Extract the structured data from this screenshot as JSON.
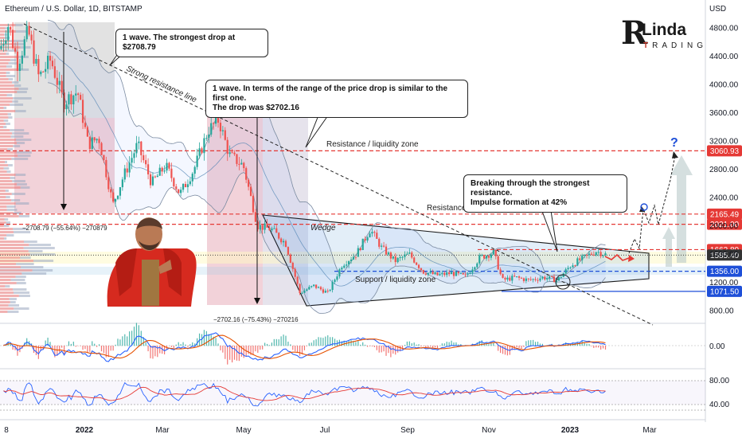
{
  "title": "Ethereum / U.S. Dollar, 1D, BITSTAMP",
  "currency_label": "USD",
  "logo": {
    "initial": "R",
    "word": "Linda",
    "sub_accent": "T",
    "sub_rest": "RADING"
  },
  "callouts": {
    "first_wave": "1 wave. The strongest drop at $2708.79",
    "second_wave_line1": "1 wave. In terms of the range of the price drop is similar to the first one.",
    "second_wave_line2": "The drop was $2702.16",
    "breakout_line1": "Breaking through the strongest resistance.",
    "breakout_line2": "Impulse formation at 42%"
  },
  "annotations": {
    "strong_resistance": "Strong resistance line",
    "resistance_zone_1": "Resistance / liquidity zone",
    "resistance_zone_2": "Resistance / liquidity zone",
    "support_zone": "Support / liquidity zone",
    "wedge": "Wedge",
    "measure_1": "−2708.79 (−55.64%) −270879",
    "measure_2": "−2702.16 (−75.43%) −270216",
    "question": "?"
  },
  "colors": {
    "up": "#26a69a",
    "down": "#ef5350",
    "resistance": "#e53935",
    "support": "#1e4fd8",
    "accent_red": "#c0392b"
  },
  "chart_data": {
    "type": "candlestick",
    "symbol": "ETHUSD",
    "timeframe": "1D",
    "exchange": "BITSTAMP",
    "ylim": [
      600,
      5000
    ],
    "y_ticks": [
      800,
      1200,
      1600,
      2000,
      2400,
      2800,
      3200,
      3600,
      4000,
      4400,
      4800
    ],
    "y_tick_labels": [
      "800.00",
      "1200.00",
      "1600.00",
      "2000.00",
      "2400.00",
      "2800.00",
      "3200.00",
      "3600.00",
      "4000.00",
      "4400.00",
      "4800.00"
    ],
    "x_tick_labels": [
      "8",
      "2022",
      "Mar",
      "May",
      "Jul",
      "Sep",
      "Nov",
      "2023",
      "Mar"
    ],
    "price_levels": [
      {
        "label": "3060.93",
        "value": 3060.93,
        "color": "#e53935",
        "style": "dashed"
      },
      {
        "label": "2165.49",
        "value": 2165.49,
        "color": "#e53935",
        "style": "dashed"
      },
      {
        "label": "2021.00",
        "value": 2021.0,
        "color": "#e53935",
        "style": "dashed"
      },
      {
        "label": "1662.80",
        "value": 1662.8,
        "color": "#e53935",
        "style": "dashed"
      },
      {
        "label": "1585.40",
        "value": 1585.4,
        "color": "#333333",
        "style": "dotted"
      },
      {
        "label": "1356.00",
        "value": 1356.0,
        "color": "#1e4fd8",
        "style": "dashed"
      },
      {
        "label": "1071.50",
        "value": 1071.5,
        "color": "#1e4fd8",
        "style": "solid"
      }
    ],
    "price_path": [
      {
        "t": 0.0,
        "v": 4500
      },
      {
        "t": 0.012,
        "v": 4850
      },
      {
        "t": 0.025,
        "v": 4300
      },
      {
        "t": 0.04,
        "v": 4750
      },
      {
        "t": 0.055,
        "v": 4100
      },
      {
        "t": 0.072,
        "v": 4350
      },
      {
        "t": 0.09,
        "v": 3750
      },
      {
        "t": 0.11,
        "v": 3900
      },
      {
        "t": 0.125,
        "v": 3150
      },
      {
        "t": 0.14,
        "v": 3250
      },
      {
        "t": 0.16,
        "v": 2300
      },
      {
        "t": 0.175,
        "v": 2700
      },
      {
        "t": 0.195,
        "v": 3150
      },
      {
        "t": 0.215,
        "v": 2600
      },
      {
        "t": 0.235,
        "v": 2850
      },
      {
        "t": 0.255,
        "v": 2450
      },
      {
        "t": 0.275,
        "v": 2800
      },
      {
        "t": 0.295,
        "v": 3350
      },
      {
        "t": 0.31,
        "v": 3500
      },
      {
        "t": 0.325,
        "v": 3000
      },
      {
        "t": 0.345,
        "v": 2850
      },
      {
        "t": 0.365,
        "v": 2000
      },
      {
        "t": 0.385,
        "v": 1950
      },
      {
        "t": 0.405,
        "v": 1750
      },
      {
        "t": 0.425,
        "v": 1050
      },
      {
        "t": 0.445,
        "v": 1150
      },
      {
        "t": 0.465,
        "v": 1050
      },
      {
        "t": 0.485,
        "v": 1450
      },
      {
        "t": 0.505,
        "v": 1600
      },
      {
        "t": 0.525,
        "v": 1950
      },
      {
        "t": 0.54,
        "v": 1700
      },
      {
        "t": 0.56,
        "v": 1500
      },
      {
        "t": 0.58,
        "v": 1600
      },
      {
        "t": 0.6,
        "v": 1350
      },
      {
        "t": 0.62,
        "v": 1300
      },
      {
        "t": 0.64,
        "v": 1330
      },
      {
        "t": 0.66,
        "v": 1280
      },
      {
        "t": 0.68,
        "v": 1550
      },
      {
        "t": 0.7,
        "v": 1620
      },
      {
        "t": 0.712,
        "v": 1230
      },
      {
        "t": 0.73,
        "v": 1270
      },
      {
        "t": 0.75,
        "v": 1230
      },
      {
        "t": 0.77,
        "v": 1270
      },
      {
        "t": 0.79,
        "v": 1230
      },
      {
        "t": 0.81,
        "v": 1450
      },
      {
        "t": 0.83,
        "v": 1560
      },
      {
        "t": 0.845,
        "v": 1640
      },
      {
        "t": 0.86,
        "v": 1590
      }
    ],
    "measures": [
      {
        "from": 4850,
        "to": 2140,
        "change": -2708.79,
        "percent": -55.64
      },
      {
        "from": 3580,
        "to": 880,
        "change": -2702.16,
        "percent": -75.43
      }
    ],
    "indicators": {
      "macd": {
        "zero_label": "0.00"
      },
      "rsi": {
        "levels": [
          80,
          40
        ],
        "level_labels": [
          "80.00",
          "40.00"
        ]
      }
    }
  }
}
